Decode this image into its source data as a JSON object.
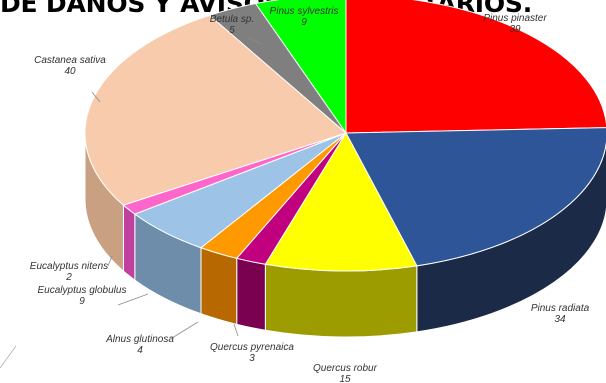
{
  "chart_data": {
    "type": "pie",
    "title": "DE DAÑOS Y AVISOS FITOSANITARIOS.",
    "slices": [
      {
        "label": "Pinus pinaster",
        "value": 39,
        "color": "#FF0000",
        "side": "#990000"
      },
      {
        "label": "Pinus radiata",
        "value": 34,
        "color": "#2E5597",
        "side": "#1A2A47"
      },
      {
        "label": "Quercus robur",
        "value": 15,
        "color": "#FFFF00",
        "side": "#9C9C00"
      },
      {
        "label": "Quercus pyrenaica",
        "value": 3,
        "color": "#C0007F",
        "side": "#7A0050"
      },
      {
        "label": "Alnus glutinosa",
        "value": 4,
        "color": "#FF9900",
        "side": "#B86800"
      },
      {
        "label": "Eucalyptus globulus",
        "value": 9,
        "color": "#9DC3E6",
        "side": "#6E8DAB"
      },
      {
        "label": "Eucalyptus nitens",
        "value": 2,
        "color": "#FF66CC",
        "side": "#C040A0"
      },
      {
        "label": "Castanea sativa",
        "value": 40,
        "color": "#F8CBAD",
        "side": "#C9A082"
      },
      {
        "label": "Betula sp.",
        "value": 5,
        "color": "#7F7F7F",
        "side": "#4F4F4F"
      },
      {
        "label": "Pinus sylvestris",
        "value": 9,
        "color": "#00FF00",
        "side": "#00A000"
      }
    ]
  }
}
